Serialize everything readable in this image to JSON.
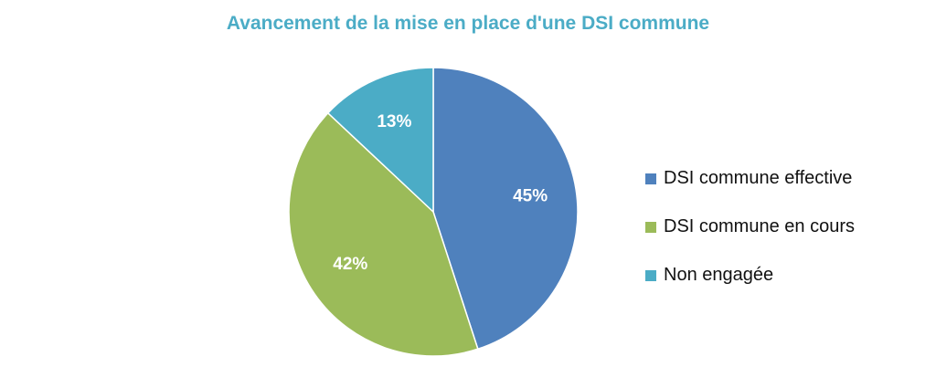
{
  "chart_data": {
    "type": "pie",
    "title": "Avancement de la mise en place d'une DSI commune",
    "categories": [
      "DSI commune effective",
      "DSI commune en cours",
      "Non engagée"
    ],
    "values": [
      45,
      42,
      13
    ],
    "data_labels": [
      "45%",
      "42%",
      "13%"
    ],
    "colors": [
      "#4f81bd",
      "#9bbb59",
      "#4bacc6"
    ],
    "legend_placement": "right"
  }
}
